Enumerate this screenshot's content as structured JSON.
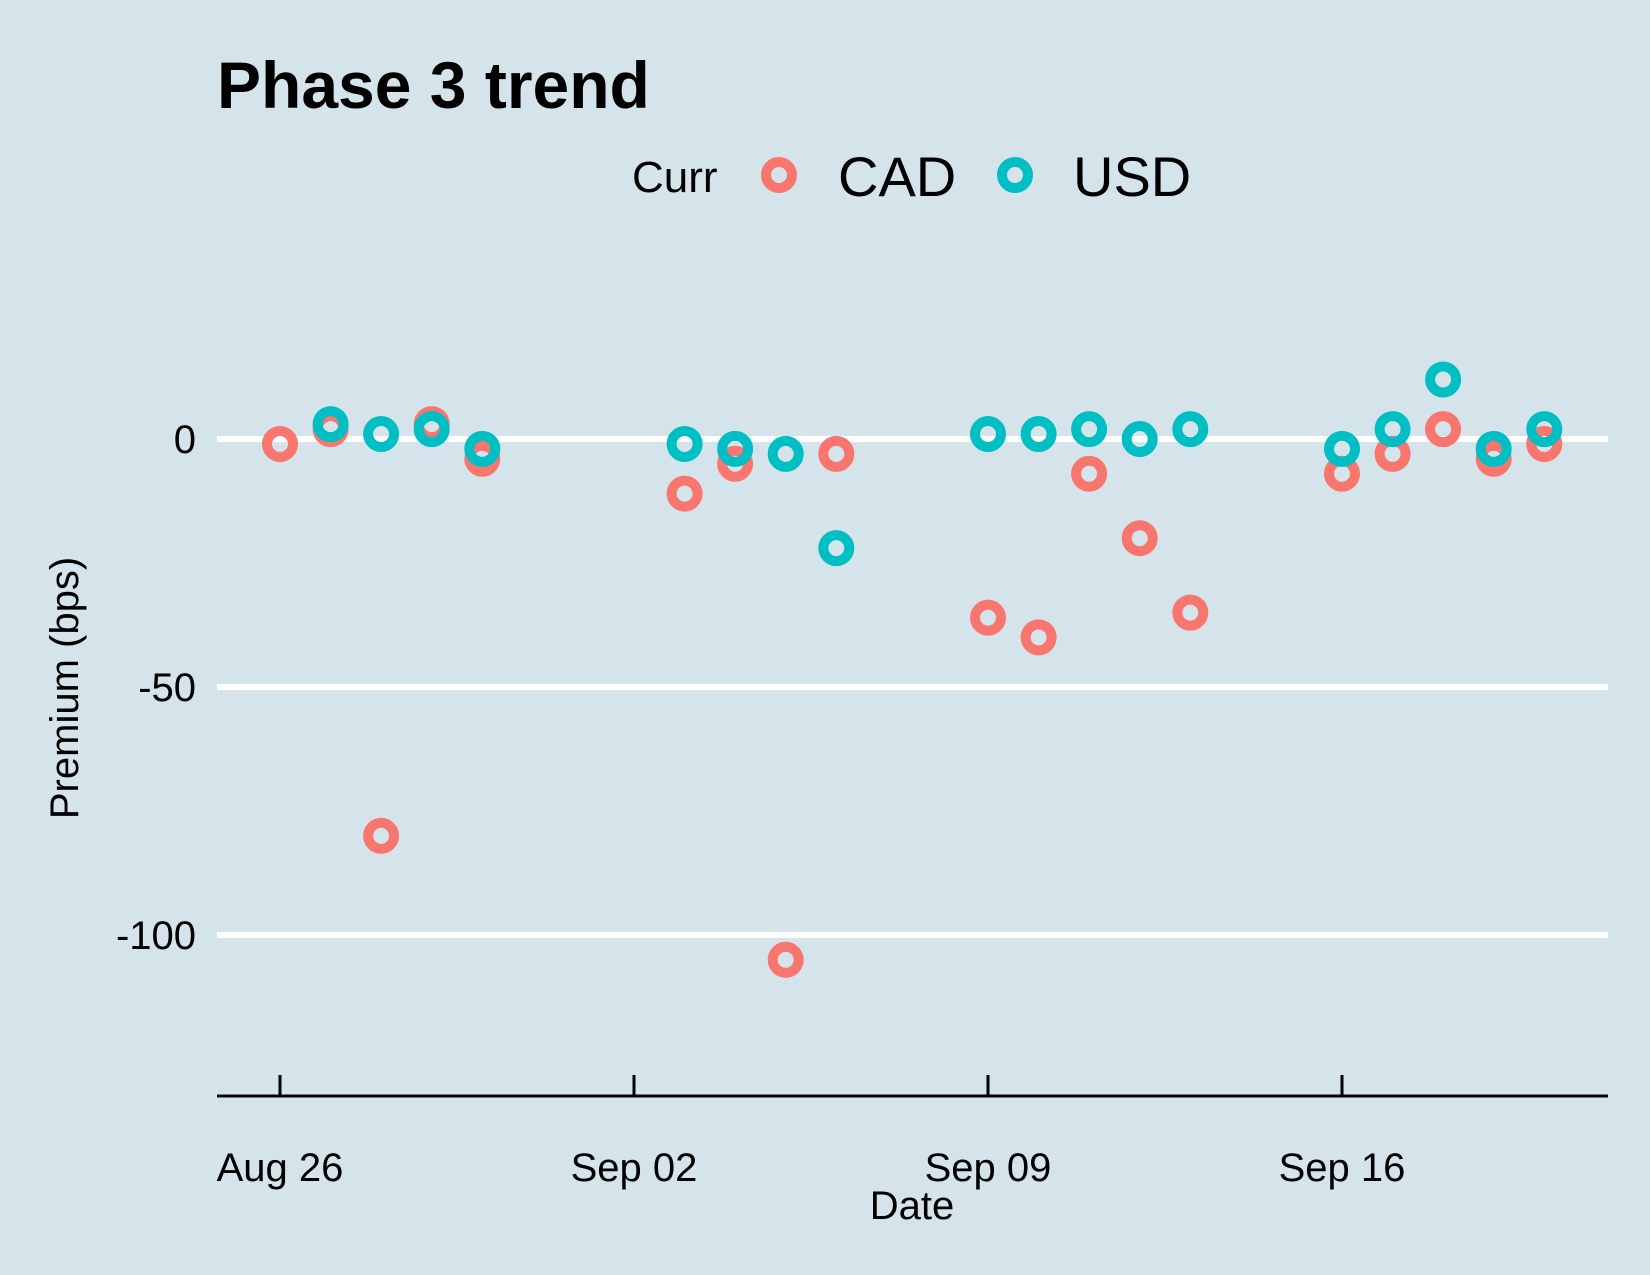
{
  "chart_data": {
    "type": "scatter",
    "title": "Phase 3 trend",
    "xlabel": "Date",
    "ylabel": "Premium (bps)",
    "legend": {
      "title": "Curr",
      "position": "top"
    },
    "x_ticks": [
      "Aug 26",
      "Sep 02",
      "Sep 09",
      "Sep 16"
    ],
    "y_ticks": [
      0,
      -50,
      -100
    ],
    "ylim": [
      -130,
      20
    ],
    "xlim": [
      "2024-08-24",
      "2024-09-21"
    ],
    "grid": "horizontal major",
    "series": [
      {
        "name": "CAD",
        "color": "#f8766d",
        "points": [
          {
            "x": "2024-08-26",
            "y": -1
          },
          {
            "x": "2024-08-27",
            "y": 2
          },
          {
            "x": "2024-08-28",
            "y": -80
          },
          {
            "x": "2024-08-29",
            "y": 3
          },
          {
            "x": "2024-08-30",
            "y": -4
          },
          {
            "x": "2024-09-03",
            "y": -11
          },
          {
            "x": "2024-09-04",
            "y": -5
          },
          {
            "x": "2024-09-05",
            "y": -105
          },
          {
            "x": "2024-09-06",
            "y": -3
          },
          {
            "x": "2024-09-09",
            "y": -36
          },
          {
            "x": "2024-09-10",
            "y": -40
          },
          {
            "x": "2024-09-11",
            "y": -7
          },
          {
            "x": "2024-09-12",
            "y": -20
          },
          {
            "x": "2024-09-13",
            "y": -35
          },
          {
            "x": "2024-09-16",
            "y": -7
          },
          {
            "x": "2024-09-17",
            "y": -3
          },
          {
            "x": "2024-09-18",
            "y": 2
          },
          {
            "x": "2024-09-19",
            "y": -4
          },
          {
            "x": "2024-09-20",
            "y": -1
          }
        ]
      },
      {
        "name": "USD",
        "color": "#00bfc4",
        "points": [
          {
            "x": "2024-08-27",
            "y": 3
          },
          {
            "x": "2024-08-28",
            "y": 1
          },
          {
            "x": "2024-08-29",
            "y": 2
          },
          {
            "x": "2024-08-30",
            "y": -2
          },
          {
            "x": "2024-09-03",
            "y": -1
          },
          {
            "x": "2024-09-04",
            "y": -2
          },
          {
            "x": "2024-09-05",
            "y": -3
          },
          {
            "x": "2024-09-06",
            "y": -22
          },
          {
            "x": "2024-09-09",
            "y": 1
          },
          {
            "x": "2024-09-10",
            "y": 1
          },
          {
            "x": "2024-09-11",
            "y": 2
          },
          {
            "x": "2024-09-12",
            "y": 0
          },
          {
            "x": "2024-09-13",
            "y": 2
          },
          {
            "x": "2024-09-16",
            "y": -2
          },
          {
            "x": "2024-09-17",
            "y": 2
          },
          {
            "x": "2024-09-18",
            "y": 12
          },
          {
            "x": "2024-09-19",
            "y": -2
          },
          {
            "x": "2024-09-20",
            "y": 2
          }
        ]
      }
    ]
  }
}
